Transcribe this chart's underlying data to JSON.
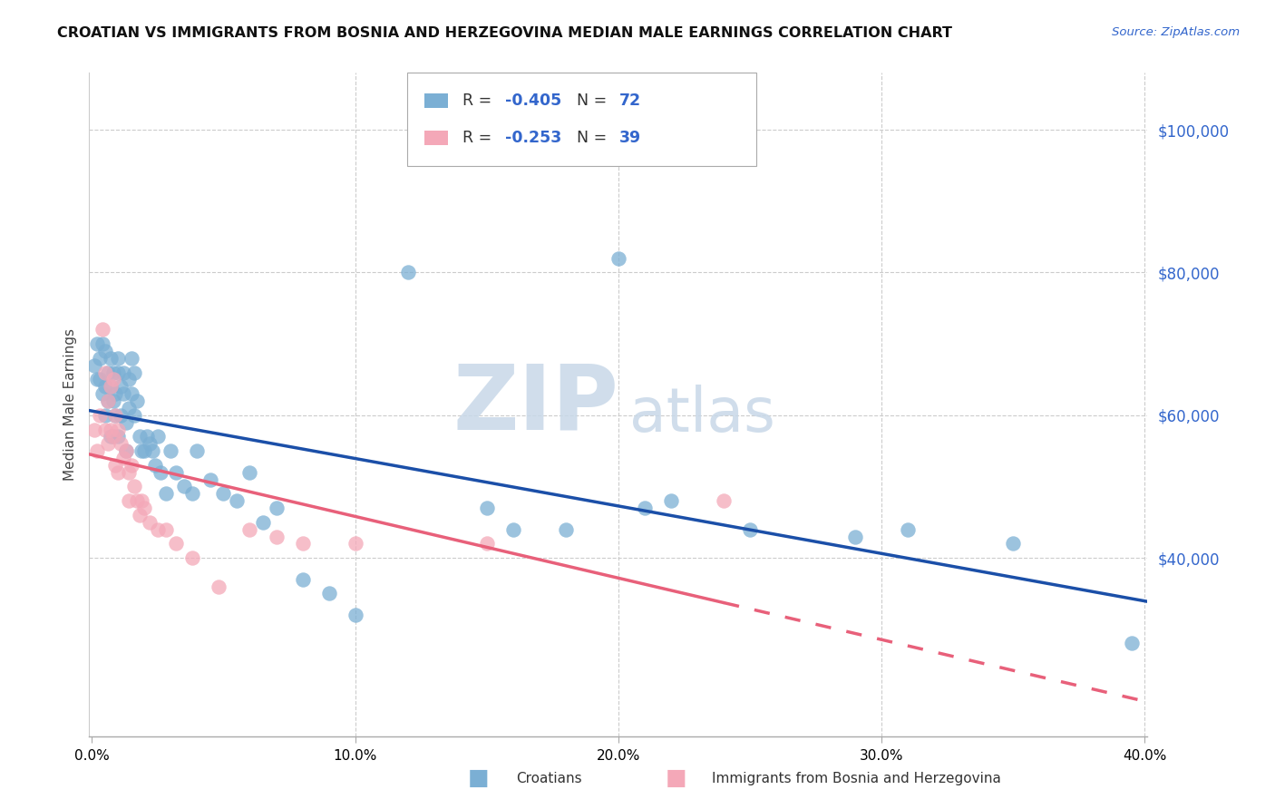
{
  "title": "CROATIAN VS IMMIGRANTS FROM BOSNIA AND HERZEGOVINA MEDIAN MALE EARNINGS CORRELATION CHART",
  "source": "Source: ZipAtlas.com",
  "ylabel": "Median Male Earnings",
  "ytick_values": [
    40000,
    60000,
    80000,
    100000
  ],
  "ylim": [
    15000,
    108000
  ],
  "xlim": [
    -0.001,
    0.401
  ],
  "legend1_R": "-0.405",
  "legend1_N": "72",
  "legend2_R": "-0.253",
  "legend2_N": "39",
  "legend_label1": "Croatians",
  "legend_label2": "Immigrants from Bosnia and Herzegovina",
  "blue_color": "#7BAFD4",
  "pink_color": "#F4A8B8",
  "blue_line_color": "#1B4FA8",
  "pink_line_color": "#E8607A",
  "watermark_zip": "ZIP",
  "watermark_atlas": "atlas",
  "background_color": "#FFFFFF",
  "blue_x": [
    0.001,
    0.002,
    0.002,
    0.003,
    0.003,
    0.004,
    0.004,
    0.005,
    0.005,
    0.005,
    0.006,
    0.006,
    0.007,
    0.007,
    0.007,
    0.008,
    0.008,
    0.008,
    0.009,
    0.009,
    0.01,
    0.01,
    0.01,
    0.011,
    0.011,
    0.012,
    0.012,
    0.013,
    0.013,
    0.014,
    0.014,
    0.015,
    0.015,
    0.016,
    0.016,
    0.017,
    0.018,
    0.019,
    0.02,
    0.021,
    0.022,
    0.023,
    0.024,
    0.025,
    0.026,
    0.028,
    0.03,
    0.032,
    0.035,
    0.038,
    0.04,
    0.045,
    0.05,
    0.055,
    0.06,
    0.065,
    0.07,
    0.08,
    0.09,
    0.1,
    0.12,
    0.15,
    0.16,
    0.18,
    0.2,
    0.21,
    0.22,
    0.25,
    0.29,
    0.31,
    0.35,
    0.395
  ],
  "blue_y": [
    67000,
    70000,
    65000,
    65000,
    68000,
    63000,
    70000,
    69000,
    64000,
    60000,
    66000,
    62000,
    68000,
    64000,
    57000,
    66000,
    62000,
    57000,
    63000,
    60000,
    68000,
    66000,
    57000,
    64000,
    60000,
    66000,
    63000,
    59000,
    55000,
    65000,
    61000,
    68000,
    63000,
    66000,
    60000,
    62000,
    57000,
    55000,
    55000,
    57000,
    56000,
    55000,
    53000,
    57000,
    52000,
    49000,
    55000,
    52000,
    50000,
    49000,
    55000,
    51000,
    49000,
    48000,
    52000,
    45000,
    47000,
    37000,
    35000,
    32000,
    80000,
    47000,
    44000,
    44000,
    82000,
    47000,
    48000,
    44000,
    43000,
    44000,
    42000,
    28000
  ],
  "pink_x": [
    0.001,
    0.002,
    0.003,
    0.004,
    0.005,
    0.005,
    0.006,
    0.006,
    0.007,
    0.007,
    0.008,
    0.008,
    0.009,
    0.009,
    0.01,
    0.01,
    0.011,
    0.012,
    0.013,
    0.014,
    0.014,
    0.015,
    0.016,
    0.017,
    0.018,
    0.019,
    0.02,
    0.022,
    0.025,
    0.028,
    0.032,
    0.038,
    0.048,
    0.06,
    0.07,
    0.08,
    0.1,
    0.15,
    0.24
  ],
  "pink_y": [
    58000,
    55000,
    60000,
    72000,
    66000,
    58000,
    62000,
    56000,
    64000,
    58000,
    65000,
    57000,
    60000,
    53000,
    58000,
    52000,
    56000,
    54000,
    55000,
    52000,
    48000,
    53000,
    50000,
    48000,
    46000,
    48000,
    47000,
    45000,
    44000,
    44000,
    42000,
    40000,
    36000,
    44000,
    43000,
    42000,
    42000,
    42000,
    48000
  ]
}
